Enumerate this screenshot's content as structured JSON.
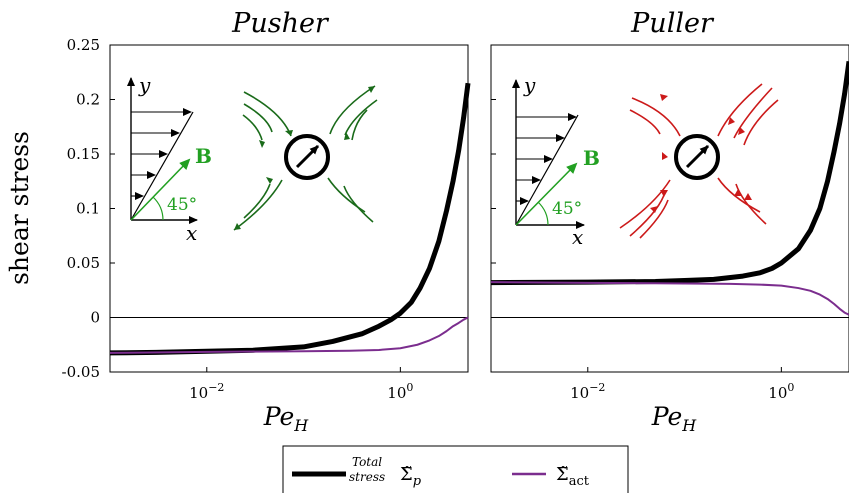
{
  "colors": {
    "total": "#000000",
    "active": "#7b2d8e",
    "pusher_inset": "#1a6b1a",
    "puller_inset": "#cc1a1a",
    "b_vector": "#22a022"
  },
  "chart_data": [
    {
      "type": "line",
      "title": "Pusher",
      "xlabel": "Pe_H",
      "ylabel": "shear stress",
      "xscale": "log",
      "xlim": [
        0.001,
        5
      ],
      "ylim": [
        -0.05,
        0.25
      ],
      "x_ticks": [
        {
          "value": 0.01,
          "label": "10^-2"
        },
        {
          "value": 1,
          "label": "10^0"
        }
      ],
      "y_ticks": [
        {
          "value": -0.05,
          "label": "-0.05"
        },
        {
          "value": 0,
          "label": "0"
        },
        {
          "value": 0.05,
          "label": "0.05"
        },
        {
          "value": 0.1,
          "label": "0.1"
        },
        {
          "value": 0.15,
          "label": "0.15"
        },
        {
          "value": 0.2,
          "label": "0.2"
        },
        {
          "value": 0.25,
          "label": "0.25"
        }
      ],
      "zero_line": true,
      "series": [
        {
          "name": "Total stress Σ̃_p",
          "x": [
            0.001,
            0.003,
            0.01,
            0.03,
            0.1,
            0.2,
            0.4,
            0.6,
            0.8,
            1.0,
            1.3,
            1.6,
            2.0,
            2.5,
            3.0,
            3.5,
            4.0,
            4.5,
            5.0
          ],
          "values": [
            -0.0325,
            -0.032,
            -0.031,
            -0.03,
            -0.027,
            -0.022,
            -0.015,
            -0.008,
            -0.002,
            0.004,
            0.014,
            0.027,
            0.045,
            0.07,
            0.098,
            0.125,
            0.153,
            0.183,
            0.215
          ]
        },
        {
          "name": "Σ̃_act",
          "x": [
            0.001,
            0.01,
            0.1,
            0.3,
            0.6,
            1.0,
            1.5,
            2.0,
            2.5,
            3.0,
            3.5,
            4.0,
            4.5,
            5.0
          ],
          "values": [
            -0.0325,
            -0.0315,
            -0.031,
            -0.0305,
            -0.0298,
            -0.0282,
            -0.025,
            -0.021,
            -0.017,
            -0.0125,
            -0.008,
            -0.005,
            -0.002,
            0.0
          ]
        }
      ]
    },
    {
      "type": "line",
      "title": "Puller",
      "xlabel": "Pe_H",
      "ylabel": "",
      "xscale": "log",
      "xlim": [
        0.001,
        5
      ],
      "ylim": [
        -0.05,
        0.25
      ],
      "x_ticks": [
        {
          "value": 0.01,
          "label": "10^-2"
        },
        {
          "value": 1,
          "label": "10^0"
        }
      ],
      "zero_line": true,
      "series": [
        {
          "name": "Total stress Σ̃_p",
          "x": [
            0.001,
            0.01,
            0.05,
            0.1,
            0.2,
            0.4,
            0.6,
            0.8,
            1.0,
            1.5,
            2.0,
            2.5,
            3.0,
            3.5,
            4.0,
            4.5,
            5.0
          ],
          "values": [
            0.032,
            0.0325,
            0.033,
            0.034,
            0.035,
            0.038,
            0.041,
            0.045,
            0.05,
            0.063,
            0.08,
            0.1,
            0.125,
            0.152,
            0.178,
            0.205,
            0.235
          ]
        },
        {
          "name": "Σ̃_act",
          "x": [
            0.001,
            0.01,
            0.1,
            0.3,
            0.6,
            1.0,
            1.5,
            2.0,
            2.5,
            3.0,
            3.5,
            4.0,
            4.5,
            5.0
          ],
          "values": [
            0.0325,
            0.0318,
            0.0312,
            0.0308,
            0.0302,
            0.0292,
            0.027,
            0.0245,
            0.021,
            0.017,
            0.0125,
            0.008,
            0.0045,
            0.0025
          ]
        }
      ]
    }
  ],
  "insets": {
    "y_axis_label": "y",
    "x_axis_label": "x",
    "vector_label": "B",
    "angle_label": "45°"
  },
  "legend": {
    "total_small_1": "Total",
    "total_small_2": "stress",
    "total_symbol": "Σ̃",
    "total_sub": "p",
    "act_symbol": "Σ̃",
    "act_sub": "act"
  }
}
